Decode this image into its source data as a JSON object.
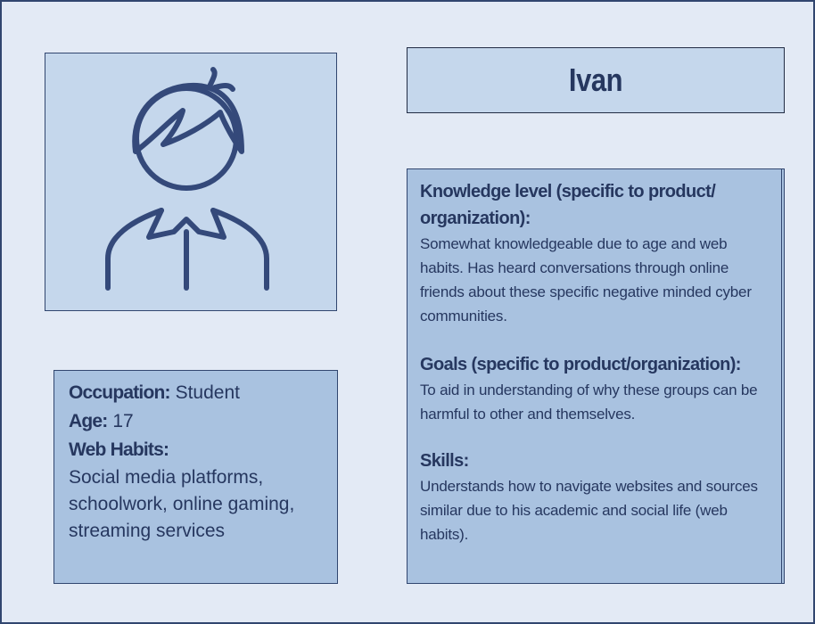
{
  "persona": {
    "name": "Ivan",
    "occupation_label": "Occupation:",
    "occupation": "Student",
    "age_label": "Age:",
    "age": "17",
    "web_habits_label": "Web Habits:",
    "web_habits": "Social media platforms, schoolwork, online gaming, streaming services"
  },
  "sections": [
    {
      "title": "Knowledge level (specific to product/ organization):",
      "body": "Somewhat knowledgeable due to age and web habits. Has heard conversations through online friends about these specific negative minded cyber communities."
    },
    {
      "title": "Goals (specific to product/organization):",
      "body": "To aid in understanding of why these groups can be harmful to other and themselves."
    },
    {
      "title": "Skills:",
      "body": "Understands how to navigate websites and sources similar due to his academic and social life (web habits)."
    }
  ],
  "icons": {
    "avatar": "person-avatar-icon"
  },
  "colors": {
    "page_bg": "#e3eaf5",
    "light_box": "#c5d7ec",
    "dark_box": "#a9c2e0",
    "ink": "#26375f"
  }
}
